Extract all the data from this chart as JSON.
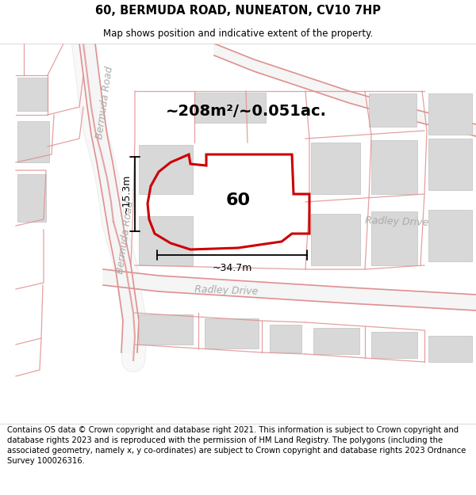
{
  "title": "60, BERMUDA ROAD, NUNEATON, CV10 7HP",
  "subtitle": "Map shows position and indicative extent of the property.",
  "footer": "Contains OS data © Crown copyright and database right 2021. This information is subject to Crown copyright and database rights 2023 and is reproduced with the permission of HM Land Registry. The polygons (including the associated geometry, namely x, y co-ordinates) are subject to Crown copyright and database rights 2023 Ordnance Survey 100026316.",
  "area_label": "~208m²/~0.051ac.",
  "number_label": "60",
  "width_label": "~34.7m",
  "height_label": "~15.3m",
  "road_label_bermuda_upper": "Bermuda Road",
  "road_label_bermuda_lower": "Bermuda Road",
  "road_label_radley_center": "Radley Drive",
  "road_label_radley_right": "Radley Drive",
  "bg_color": "#ffffff",
  "road_fill_color": "#f5c8c8",
  "road_edge_color": "#e09090",
  "block_color": "#d8d8d8",
  "block_edge_color": "#c0c0c0",
  "plot_edge_color": "#cc0000",
  "dim_color": "#000000",
  "title_fontsize": 10.5,
  "subtitle_fontsize": 8.5,
  "footer_fontsize": 7.2,
  "area_fontsize": 14,
  "number_fontsize": 16,
  "dim_fontsize": 9,
  "road_label_fontsize": 9
}
